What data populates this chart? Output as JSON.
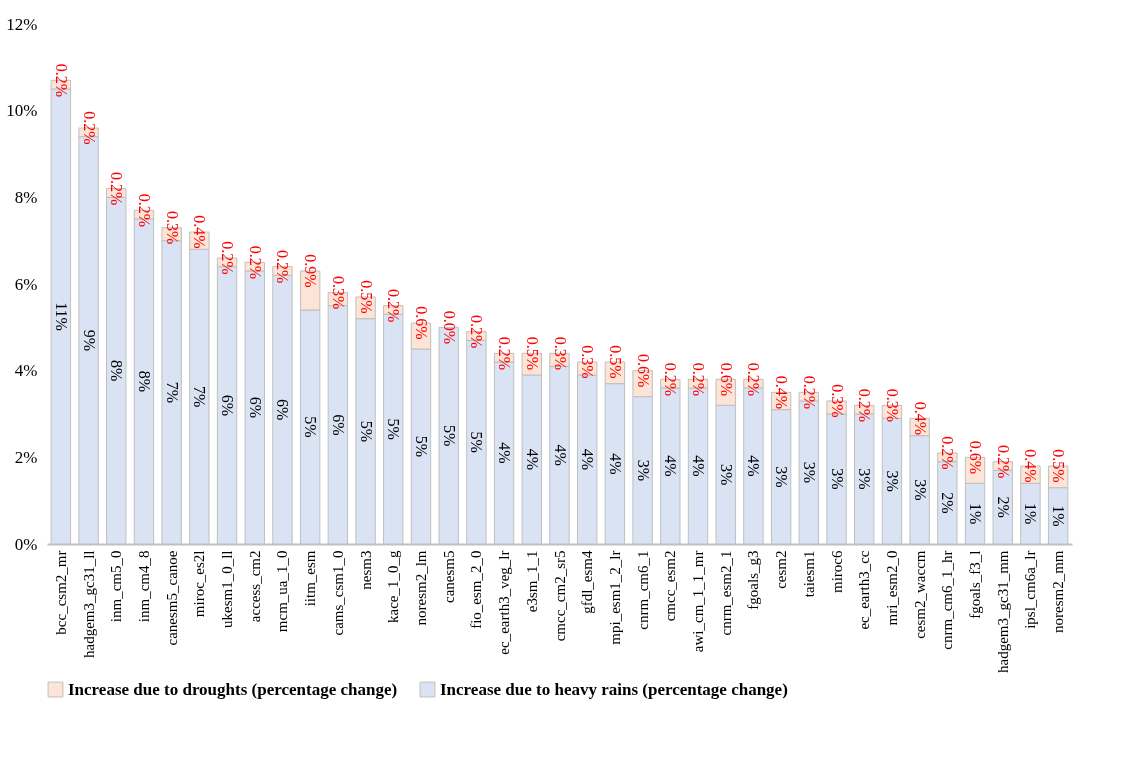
{
  "chart_data": {
    "type": "bar",
    "stacked": true,
    "categories": [
      "bcc_csm2_mr",
      "hadgem3_gc31_ll",
      "inm_cm5_0",
      "inm_cm4_8",
      "canesm5_canoe",
      "miroc_es2l",
      "ukesm1_0_ll",
      "access_cm2",
      "mcm_ua_1_0",
      "iitm_esm",
      "cams_csm1_0",
      "nesm3",
      "kace_1_0_g",
      "noresm2_lm",
      "canesm5",
      "fio_esm_2_0",
      "ec_earth3_veg_lr",
      "e3sm_1_1",
      "cmcc_cm2_sr5",
      "gfdl_esm4",
      "mpi_esm1_2_lr",
      "cnrm_cm6_1",
      "cmcc_esm2",
      "awi_cm_1_1_mr",
      "cnrm_esm2_1",
      "fgoals_g3",
      "cesm2",
      "taiesm1",
      "miroc6",
      "ec_earth3_cc",
      "mri_esm2_0",
      "cesm2_waccm",
      "cnrm_cm6_1_hr",
      "fgoals_f3_l",
      "hadgem3_gc31_mm",
      "ipsl_cm6a_lr",
      "noresm2_mm"
    ],
    "series": [
      {
        "name": "Increase due to heavy rains (percentage change)",
        "color": "#dae3f3",
        "values": [
          10.5,
          9.4,
          8.0,
          7.5,
          7.0,
          6.8,
          6.4,
          6.3,
          6.2,
          5.4,
          5.5,
          5.2,
          5.3,
          4.5,
          5.0,
          4.7,
          4.2,
          3.9,
          4.1,
          3.9,
          3.7,
          3.4,
          3.6,
          3.6,
          3.2,
          3.6,
          3.1,
          3.3,
          3.0,
          3.0,
          2.9,
          2.5,
          1.9,
          1.4,
          1.7,
          1.4,
          1.3
        ],
        "value_labels": [
          "11%",
          "9%",
          "8%",
          "8%",
          "7%",
          "7%",
          "6%",
          "6%",
          "6%",
          "5%",
          "6%",
          "5%",
          "5%",
          "5%",
          "5%",
          "5%",
          "4%",
          "4%",
          "4%",
          "4%",
          "4%",
          "3%",
          "4%",
          "4%",
          "3%",
          "4%",
          "3%",
          "3%",
          "3%",
          "3%",
          "3%",
          "3%",
          "2%",
          "1%",
          "2%",
          "1%",
          "1%"
        ]
      },
      {
        "name": "Increase due to droughts (percentage change)",
        "color": "#fce4d6",
        "values": [
          0.2,
          0.2,
          0.2,
          0.2,
          0.3,
          0.4,
          0.2,
          0.2,
          0.2,
          0.9,
          0.3,
          0.5,
          0.2,
          0.6,
          0.0,
          0.2,
          0.2,
          0.5,
          0.3,
          0.3,
          0.5,
          0.6,
          0.2,
          0.2,
          0.6,
          0.2,
          0.4,
          0.2,
          0.3,
          0.2,
          0.3,
          0.4,
          0.2,
          0.6,
          0.2,
          0.4,
          0.5
        ],
        "value_labels": [
          "0.2%",
          "0.2%",
          "0.2%",
          "0.2%",
          "0.3%",
          "0.4%",
          "0.2%",
          "0.2%",
          "0.2%",
          "0.9%",
          "0.3%",
          "0.5%",
          "0.2%",
          "0.6%",
          "0.0%",
          "0.2%",
          "0.2%",
          "0.5%",
          "0.3%",
          "0.3%",
          "0.5%",
          "0.6%",
          "0.2%",
          "0.2%",
          "0.6%",
          "0.2%",
          "0.4%",
          "0.2%",
          "0.3%",
          "0.2%",
          "0.3%",
          "0.4%",
          "0.2%",
          "0.6%",
          "0.2%",
          "0.4%",
          "0.5%"
        ]
      }
    ],
    "ylim": [
      0,
      12
    ],
    "yticks": [
      {
        "value": 0,
        "label": "0%"
      },
      {
        "value": 2,
        "label": "2%"
      },
      {
        "value": 4,
        "label": "4%"
      },
      {
        "value": 6,
        "label": "6%"
      },
      {
        "value": 8,
        "label": "8%"
      },
      {
        "value": 10,
        "label": "10%"
      },
      {
        "value": 12,
        "label": "12%"
      }
    ],
    "grid": false,
    "legend": "bottom"
  }
}
